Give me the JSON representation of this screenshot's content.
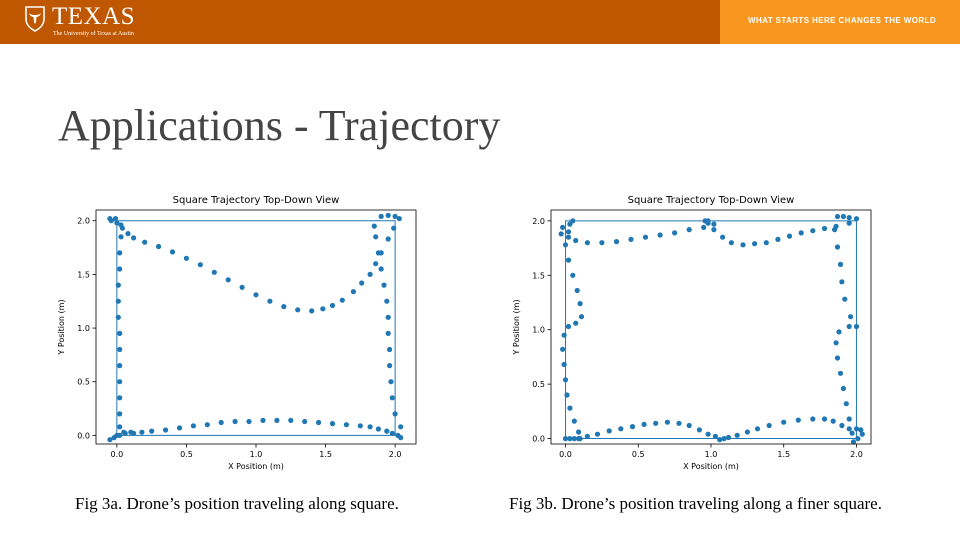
{
  "header": {
    "logo_word": "TEXAS",
    "logo_subtitle": "The University of Texas at Austin",
    "tagline": "WHAT STARTS HERE CHANGES THE WORLD",
    "colors": {
      "burnt_orange": "#bf5700",
      "orange": "#f8971f"
    }
  },
  "slide": {
    "title": "Applications - Trajectory"
  },
  "figures": [
    {
      "caption": "Fig 3a. Drone’s position traveling along square.",
      "chart_data": {
        "type": "scatter",
        "title": "Square Trajectory Top-Down View",
        "xlabel": "X Position (m)",
        "ylabel": "Y Position (m)",
        "xlim": [
          -0.15,
          2.15
        ],
        "ylim": [
          -0.08,
          2.1
        ],
        "xticks": [
          "0.0",
          "0.5",
          "1.0",
          "1.5",
          "2.0"
        ],
        "yticks": [
          "0.0",
          "0.5",
          "1.0",
          "1.5",
          "2.0"
        ],
        "reference_square": [
          [
            0,
            0
          ],
          [
            2,
            0
          ],
          [
            2,
            2
          ],
          [
            0,
            2
          ],
          [
            0,
            0
          ]
        ],
        "series": [
          {
            "color": "#1f77b4",
            "points": [
              [
                -0.05,
                -0.04
              ],
              [
                -0.02,
                -0.02
              ],
              [
                0.02,
                0.0
              ],
              [
                0.06,
                0.02
              ],
              [
                0.12,
                0.02
              ],
              [
                0.18,
                0.03
              ],
              [
                0.25,
                0.04
              ],
              [
                0.35,
                0.05
              ],
              [
                0.45,
                0.07
              ],
              [
                0.55,
                0.09
              ],
              [
                0.65,
                0.1
              ],
              [
                0.75,
                0.12
              ],
              [
                0.85,
                0.13
              ],
              [
                0.95,
                0.13
              ],
              [
                1.05,
                0.14
              ],
              [
                1.15,
                0.14
              ],
              [
                1.25,
                0.14
              ],
              [
                1.35,
                0.13
              ],
              [
                1.45,
                0.12
              ],
              [
                1.55,
                0.11
              ],
              [
                1.65,
                0.1
              ],
              [
                1.75,
                0.09
              ],
              [
                1.82,
                0.08
              ],
              [
                1.88,
                0.06
              ],
              [
                1.94,
                0.04
              ],
              [
                1.98,
                0.02
              ],
              [
                2.02,
                0.0
              ],
              [
                2.04,
                -0.02
              ],
              [
                2.04,
                0.08
              ],
              [
                2.0,
                0.2
              ],
              [
                1.98,
                0.35
              ],
              [
                1.97,
                0.5
              ],
              [
                1.96,
                0.65
              ],
              [
                1.96,
                0.8
              ],
              [
                1.95,
                0.95
              ],
              [
                1.95,
                1.1
              ],
              [
                1.94,
                1.25
              ],
              [
                1.92,
                1.4
              ],
              [
                1.9,
                1.55
              ],
              [
                1.88,
                1.7
              ],
              [
                1.86,
                1.85
              ],
              [
                1.85,
                1.95
              ],
              [
                1.9,
                2.04
              ],
              [
                1.95,
                2.05
              ],
              [
                2.0,
                2.04
              ],
              [
                2.03,
                2.02
              ],
              [
                1.99,
                1.93
              ],
              [
                1.95,
                1.83
              ],
              [
                1.9,
                1.7
              ],
              [
                1.86,
                1.6
              ],
              [
                1.82,
                1.5
              ],
              [
                1.76,
                1.42
              ],
              [
                1.7,
                1.34
              ],
              [
                1.62,
                1.26
              ],
              [
                1.55,
                1.21
              ],
              [
                1.48,
                1.18
              ],
              [
                1.4,
                1.16
              ],
              [
                1.3,
                1.17
              ],
              [
                1.2,
                1.2
              ],
              [
                1.1,
                1.25
              ],
              [
                1.0,
                1.31
              ],
              [
                0.9,
                1.38
              ],
              [
                0.8,
                1.45
              ],
              [
                0.7,
                1.52
              ],
              [
                0.6,
                1.59
              ],
              [
                0.5,
                1.65
              ],
              [
                0.4,
                1.71
              ],
              [
                0.3,
                1.76
              ],
              [
                0.2,
                1.8
              ],
              [
                0.12,
                1.84
              ],
              [
                0.08,
                1.88
              ],
              [
                0.04,
                1.93
              ],
              [
                0.0,
                1.98
              ],
              [
                -0.04,
                2.0
              ],
              [
                -0.05,
                2.02
              ],
              [
                -0.01,
                2.02
              ],
              [
                0.03,
                1.96
              ],
              [
                0.03,
                1.85
              ],
              [
                0.02,
                1.7
              ],
              [
                0.02,
                1.55
              ],
              [
                0.01,
                1.4
              ],
              [
                0.01,
                1.25
              ],
              [
                0.01,
                1.1
              ],
              [
                0.02,
                0.95
              ],
              [
                0.02,
                0.8
              ],
              [
                0.02,
                0.65
              ],
              [
                0.02,
                0.5
              ],
              [
                0.02,
                0.35
              ],
              [
                0.02,
                0.2
              ],
              [
                0.02,
                0.08
              ],
              [
                0.0,
                0.0
              ],
              [
                0.05,
                0.03
              ],
              [
                0.1,
                0.03
              ]
            ]
          }
        ]
      }
    },
    {
      "caption": "Fig 3b. Drone’s position traveling along a finer square.",
      "chart_data": {
        "type": "scatter",
        "title": "Square Trajectory Top-Down View",
        "xlabel": "X Position (m)",
        "ylabel": "Y Position (m)",
        "xlim": [
          -0.1,
          2.1
        ],
        "ylim": [
          -0.05,
          2.1
        ],
        "xticks": [
          "0.0",
          "0.5",
          "1.0",
          "1.5",
          "2.0"
        ],
        "yticks": [
          "0.0",
          "0.5",
          "1.0",
          "1.5",
          "2.0"
        ],
        "reference_square": [
          [
            0,
            0
          ],
          [
            2,
            0
          ],
          [
            2,
            2
          ],
          [
            0,
            2
          ],
          [
            0,
            0
          ]
        ],
        "series": [
          {
            "color": "#1f77b4",
            "points": [
              [
                0.0,
                0.0
              ],
              [
                0.03,
                0.0
              ],
              [
                0.06,
                0.0
              ],
              [
                0.09,
                0.0
              ],
              [
                0.15,
                0.02
              ],
              [
                0.22,
                0.04
              ],
              [
                0.3,
                0.07
              ],
              [
                0.38,
                0.09
              ],
              [
                0.46,
                0.11
              ],
              [
                0.54,
                0.13
              ],
              [
                0.62,
                0.14
              ],
              [
                0.7,
                0.15
              ],
              [
                0.78,
                0.14
              ],
              [
                0.85,
                0.12
              ],
              [
                0.92,
                0.08
              ],
              [
                0.98,
                0.04
              ],
              [
                1.03,
                0.02
              ],
              [
                1.06,
                -0.01
              ],
              [
                1.09,
                0.0
              ],
              [
                1.12,
                0.01
              ],
              [
                1.18,
                0.03
              ],
              [
                1.25,
                0.06
              ],
              [
                1.32,
                0.09
              ],
              [
                1.4,
                0.12
              ],
              [
                1.5,
                0.15
              ],
              [
                1.6,
                0.17
              ],
              [
                1.7,
                0.18
              ],
              [
                1.78,
                0.18
              ],
              [
                1.84,
                0.16
              ],
              [
                1.9,
                0.12
              ],
              [
                1.95,
                0.09
              ],
              [
                2.0,
                0.09
              ],
              [
                2.03,
                0.08
              ],
              [
                2.04,
                0.04
              ],
              [
                2.01,
                0.0
              ],
              [
                1.98,
                -0.03
              ],
              [
                1.97,
                0.05
              ],
              [
                1.95,
                0.18
              ],
              [
                1.93,
                0.32
              ],
              [
                1.91,
                0.46
              ],
              [
                1.89,
                0.6
              ],
              [
                1.87,
                0.74
              ],
              [
                1.86,
                0.88
              ],
              [
                1.88,
                0.98
              ],
              [
                1.95,
                1.03
              ],
              [
                2.0,
                1.03
              ],
              [
                1.96,
                1.12
              ],
              [
                1.92,
                1.28
              ],
              [
                1.9,
                1.44
              ],
              [
                1.89,
                1.6
              ],
              [
                1.87,
                1.76
              ],
              [
                1.85,
                1.92
              ],
              [
                1.87,
                2.04
              ],
              [
                1.91,
                2.04
              ],
              [
                1.95,
                2.03
              ],
              [
                2.0,
                2.02
              ],
              [
                1.95,
                1.98
              ],
              [
                1.86,
                1.95
              ],
              [
                1.78,
                1.93
              ],
              [
                1.7,
                1.91
              ],
              [
                1.62,
                1.89
              ],
              [
                1.54,
                1.86
              ],
              [
                1.46,
                1.83
              ],
              [
                1.38,
                1.8
              ],
              [
                1.3,
                1.79
              ],
              [
                1.22,
                1.78
              ],
              [
                1.14,
                1.8
              ],
              [
                1.08,
                1.85
              ],
              [
                1.02,
                1.92
              ],
              [
                0.98,
                1.98
              ],
              [
                0.96,
                2.0
              ],
              [
                0.98,
                2.0
              ],
              [
                1.02,
                1.97
              ],
              [
                0.95,
                1.94
              ],
              [
                0.85,
                1.92
              ],
              [
                0.75,
                1.89
              ],
              [
                0.65,
                1.87
              ],
              [
                0.55,
                1.85
              ],
              [
                0.45,
                1.83
              ],
              [
                0.35,
                1.81
              ],
              [
                0.25,
                1.8
              ],
              [
                0.15,
                1.8
              ],
              [
                0.07,
                1.82
              ],
              [
                0.02,
                1.85
              ],
              [
                -0.03,
                1.88
              ],
              [
                -0.02,
                1.94
              ],
              [
                0.03,
                1.97
              ],
              [
                0.05,
                2.0
              ],
              [
                0.02,
                1.9
              ],
              [
                0.0,
                1.78
              ],
              [
                0.02,
                1.64
              ],
              [
                0.05,
                1.5
              ],
              [
                0.08,
                1.36
              ],
              [
                0.1,
                1.24
              ],
              [
                0.11,
                1.12
              ],
              [
                0.07,
                1.06
              ],
              [
                0.02,
                1.03
              ],
              [
                -0.01,
                0.95
              ],
              [
                -0.02,
                0.82
              ],
              [
                -0.01,
                0.68
              ],
              [
                0.0,
                0.54
              ],
              [
                0.01,
                0.4
              ],
              [
                0.03,
                0.28
              ],
              [
                0.06,
                0.16
              ],
              [
                0.09,
                0.06
              ],
              [
                0.1,
                0.0
              ]
            ]
          }
        ]
      }
    }
  ]
}
